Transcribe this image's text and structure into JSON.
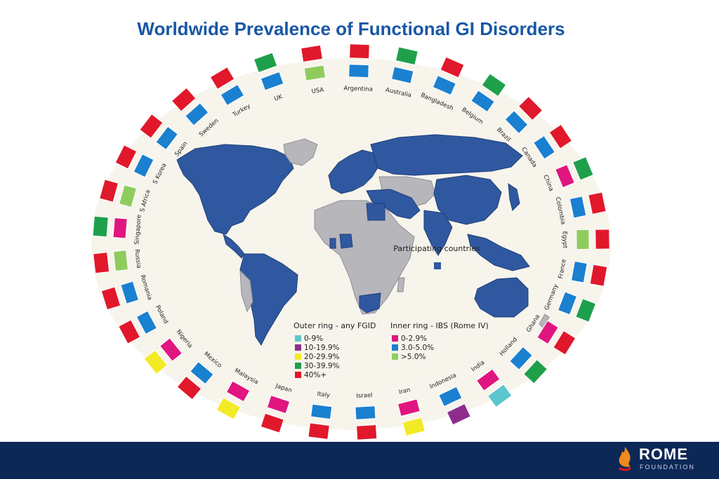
{
  "title": "Worldwide Prevalence of Functional GI Disorders",
  "colors": {
    "red": "#e1182b",
    "blue": "#1a80d0",
    "green": "#1ea04a",
    "lightgreen": "#8fcc5d",
    "magenta": "#e0157f",
    "purple": "#8e2c8e",
    "yellow": "#f3ea26",
    "cyan": "#5cc6cf",
    "map_participating": "#2f58a0",
    "map_other": "#b6b6bb",
    "footer": "#0c2857"
  },
  "map": {
    "participating_label": "Participating countries"
  },
  "legend": {
    "outer_title": "Outer ring - any FGID",
    "outer_items": [
      {
        "label": "0-9%",
        "color": "#5cc6cf"
      },
      {
        "label": "10-19.9%",
        "color": "#8e2c8e"
      },
      {
        "label": "20-29.9%",
        "color": "#f3ea26"
      },
      {
        "label": "30-39.9%",
        "color": "#1ea04a"
      },
      {
        "label": "40%+",
        "color": "#e1182b"
      }
    ],
    "inner_title": "Inner ring - IBS (Rome IV)",
    "inner_items": [
      {
        "label": "0-2.9%",
        "color": "#e0157f"
      },
      {
        "label": "3.0-5.0%",
        "color": "#1a80d0"
      },
      {
        "label": ">5.0%",
        "color": "#8fcc5d"
      }
    ]
  },
  "countries": [
    {
      "name": "USA",
      "outer": "40%+",
      "inner": ">5.0%"
    },
    {
      "name": "Argentina",
      "outer": "40%+",
      "inner": "3.0-5.0%"
    },
    {
      "name": "Australia",
      "outer": "30-39.9%",
      "inner": "3.0-5.0%"
    },
    {
      "name": "Bangladesh",
      "outer": "40%+",
      "inner": "3.0-5.0%"
    },
    {
      "name": "Belgium",
      "outer": "30-39.9%",
      "inner": "3.0-5.0%"
    },
    {
      "name": "Brazil",
      "outer": "40%+",
      "inner": "3.0-5.0%"
    },
    {
      "name": "Canada",
      "outer": "40%+",
      "inner": "3.0-5.0%"
    },
    {
      "name": "China",
      "outer": "30-39.9%",
      "inner": "0-2.9%"
    },
    {
      "name": "Colombia",
      "outer": "40%+",
      "inner": "3.0-5.0%"
    },
    {
      "name": "Egypt",
      "outer": "40%+",
      "inner": ">5.0%"
    },
    {
      "name": "France",
      "outer": "40%+",
      "inner": "3.0-5.0%"
    },
    {
      "name": "Germany",
      "outer": "30-39.9%",
      "inner": "3.0-5.0%"
    },
    {
      "name": "Ghana",
      "outer": "40%+",
      "inner": "0-2.9%"
    },
    {
      "name": "Holland",
      "outer": "30-39.9%",
      "inner": "3.0-5.0%"
    },
    {
      "name": "India",
      "outer": "0-9%",
      "inner": "0-2.9%"
    },
    {
      "name": "Indonesia",
      "outer": "10-19.9%",
      "inner": "3.0-5.0%"
    },
    {
      "name": "Iran",
      "outer": "20-29.9%",
      "inner": "0-2.9%"
    },
    {
      "name": "Israel",
      "outer": "40%+",
      "inner": "3.0-5.0%"
    },
    {
      "name": "Italy",
      "outer": "40%+",
      "inner": "3.0-5.0%"
    },
    {
      "name": "Japan",
      "outer": "40%+",
      "inner": "0-2.9%"
    },
    {
      "name": "Malaysia",
      "outer": "20-29.9%",
      "inner": "0-2.9%"
    },
    {
      "name": "Mexico",
      "outer": "40%+",
      "inner": "3.0-5.0%"
    },
    {
      "name": "Nigeria",
      "outer": "20-29.9%",
      "inner": "0-2.9%"
    },
    {
      "name": "Poland",
      "outer": "40%+",
      "inner": "3.0-5.0%"
    },
    {
      "name": "Romania",
      "outer": "40%+",
      "inner": "3.0-5.0%"
    },
    {
      "name": "Russia",
      "outer": "40%+",
      "inner": ">5.0%"
    },
    {
      "name": "Singapore",
      "outer": "30-39.9%",
      "inner": "0-2.9%"
    },
    {
      "name": "S Africa",
      "outer": "40%+",
      "inner": ">5.0%"
    },
    {
      "name": "S Korea",
      "outer": "40%+",
      "inner": "3.0-5.0%"
    },
    {
      "name": "Spain",
      "outer": "40%+",
      "inner": "3.0-5.0%"
    },
    {
      "name": "Sweden",
      "outer": "40%+",
      "inner": "3.0-5.0%"
    },
    {
      "name": "Turkey",
      "outer": "40%+",
      "inner": "3.0-5.0%"
    },
    {
      "name": "UK",
      "outer": "30-39.9%",
      "inner": "3.0-5.0%"
    }
  ],
  "logo": {
    "name": "ROME",
    "sub": "FOUNDATION"
  }
}
